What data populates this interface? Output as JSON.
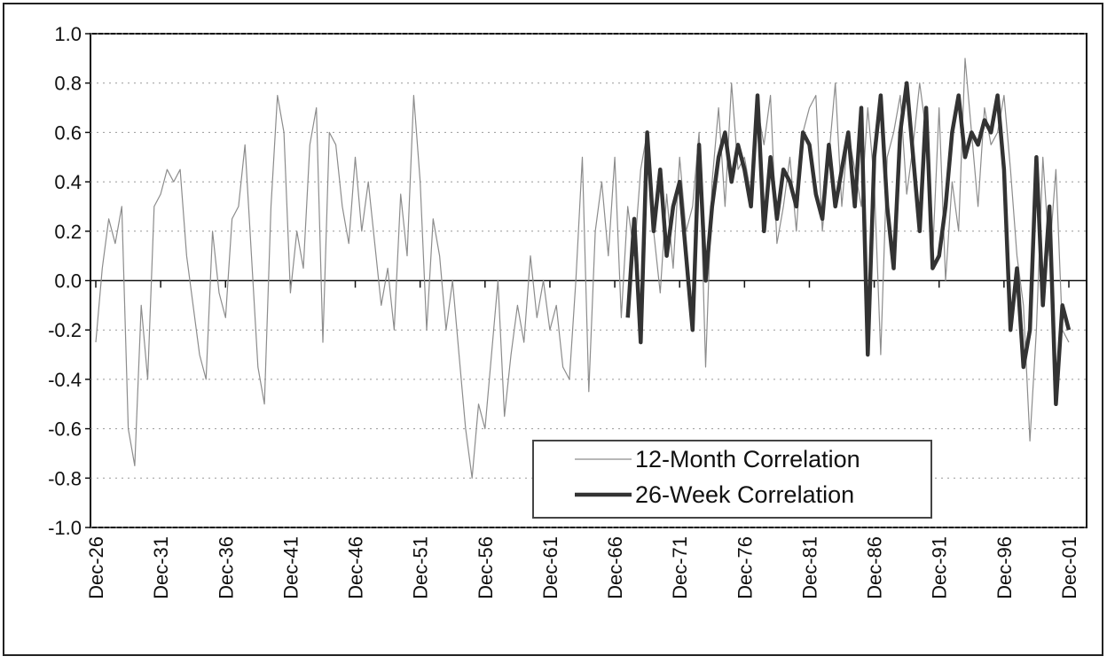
{
  "chart_data": {
    "type": "line",
    "categories": [
      "Dec-26",
      null,
      null,
      null,
      null,
      null,
      null,
      null,
      null,
      null,
      "Dec-31",
      null,
      null,
      null,
      null,
      null,
      null,
      null,
      null,
      null,
      "Dec-36",
      null,
      null,
      null,
      null,
      null,
      null,
      null,
      null,
      null,
      "Dec-41",
      null,
      null,
      null,
      null,
      null,
      null,
      null,
      null,
      null,
      "Dec-46",
      null,
      null,
      null,
      null,
      null,
      null,
      null,
      null,
      null,
      "Dec-51",
      null,
      null,
      null,
      null,
      null,
      null,
      null,
      null,
      null,
      "Dec-56",
      null,
      null,
      null,
      null,
      null,
      null,
      null,
      null,
      null,
      "Dec-61",
      null,
      null,
      null,
      null,
      null,
      null,
      null,
      null,
      null,
      "Dec-66",
      null,
      null,
      null,
      null,
      null,
      null,
      null,
      null,
      null,
      "Dec-71",
      null,
      null,
      null,
      null,
      null,
      null,
      null,
      null,
      null,
      "Dec-76",
      null,
      null,
      null,
      null,
      null,
      null,
      null,
      null,
      null,
      "Dec-81",
      null,
      null,
      null,
      null,
      null,
      null,
      null,
      null,
      null,
      "Dec-86",
      null,
      null,
      null,
      null,
      null,
      null,
      null,
      null,
      null,
      "Dec-91",
      null,
      null,
      null,
      null,
      null,
      null,
      null,
      null,
      null,
      "Dec-96",
      null,
      null,
      null,
      null,
      null,
      null,
      null,
      null,
      null,
      "Dec-01"
    ],
    "series": [
      {
        "name": "12-Month Correlation",
        "color": "#8c8c8c",
        "width": 1.2,
        "values": [
          -0.25,
          0.05,
          0.25,
          0.15,
          0.3,
          -0.6,
          -0.75,
          -0.1,
          -0.4,
          0.3,
          0.35,
          0.45,
          0.4,
          0.45,
          0.1,
          -0.1,
          -0.3,
          -0.4,
          0.2,
          -0.05,
          -0.15,
          0.25,
          0.3,
          0.55,
          0.1,
          -0.35,
          -0.5,
          0.3,
          0.75,
          0.6,
          -0.05,
          0.2,
          0.05,
          0.55,
          0.7,
          -0.25,
          0.6,
          0.55,
          0.3,
          0.15,
          0.5,
          0.2,
          0.4,
          0.15,
          -0.1,
          0.05,
          -0.2,
          0.35,
          0.1,
          0.75,
          0.4,
          -0.2,
          0.25,
          0.1,
          -0.2,
          0.0,
          -0.3,
          -0.6,
          -0.8,
          -0.5,
          -0.6,
          -0.3,
          0.0,
          -0.55,
          -0.3,
          -0.1,
          -0.25,
          0.1,
          -0.15,
          0.0,
          -0.2,
          -0.1,
          -0.35,
          -0.4,
          0.0,
          0.5,
          -0.45,
          0.2,
          0.4,
          0.1,
          0.5,
          -0.15,
          0.3,
          0.1,
          0.45,
          0.6,
          0.2,
          -0.05,
          0.35,
          0.05,
          0.5,
          0.2,
          0.3,
          0.6,
          -0.35,
          0.4,
          0.7,
          0.3,
          0.8,
          0.45,
          0.5,
          0.35,
          0.7,
          0.55,
          0.75,
          0.15,
          0.3,
          0.5,
          0.2,
          0.6,
          0.7,
          0.75,
          0.2,
          0.5,
          0.8,
          0.3,
          0.6,
          0.45,
          0.3,
          0.7,
          0.4,
          -0.3,
          0.5,
          0.6,
          0.75,
          0.35,
          0.55,
          0.8,
          0.6,
          0.1,
          0.7,
          0.0,
          0.4,
          0.2,
          0.9,
          0.6,
          0.3,
          0.7,
          0.55,
          0.6,
          0.75,
          0.45,
          0.1,
          -0.1,
          -0.65,
          -0.2,
          0.5,
          0.1,
          0.45,
          -0.2,
          -0.25
        ]
      },
      {
        "name": "26-Week Correlation",
        "color": "#333333",
        "width": 4.5,
        "values": [
          null,
          null,
          null,
          null,
          null,
          null,
          null,
          null,
          null,
          null,
          null,
          null,
          null,
          null,
          null,
          null,
          null,
          null,
          null,
          null,
          null,
          null,
          null,
          null,
          null,
          null,
          null,
          null,
          null,
          null,
          null,
          null,
          null,
          null,
          null,
          null,
          null,
          null,
          null,
          null,
          null,
          null,
          null,
          null,
          null,
          null,
          null,
          null,
          null,
          null,
          null,
          null,
          null,
          null,
          null,
          null,
          null,
          null,
          null,
          null,
          null,
          null,
          null,
          null,
          null,
          null,
          null,
          null,
          null,
          null,
          null,
          null,
          null,
          null,
          null,
          null,
          null,
          null,
          null,
          null,
          null,
          null,
          -0.15,
          0.25,
          -0.25,
          0.6,
          0.2,
          0.45,
          0.1,
          0.3,
          0.4,
          0.1,
          -0.2,
          0.55,
          0.0,
          0.3,
          0.5,
          0.6,
          0.4,
          0.55,
          0.45,
          0.3,
          0.75,
          0.2,
          0.5,
          0.25,
          0.45,
          0.4,
          0.3,
          0.6,
          0.55,
          0.35,
          0.25,
          0.55,
          0.3,
          0.45,
          0.6,
          0.3,
          0.7,
          -0.3,
          0.5,
          0.75,
          0.3,
          0.05,
          0.6,
          0.8,
          0.5,
          0.2,
          0.7,
          0.05,
          0.1,
          0.3,
          0.6,
          0.75,
          0.5,
          0.6,
          0.55,
          0.65,
          0.6,
          0.75,
          0.45,
          -0.2,
          0.05,
          -0.35,
          -0.2,
          0.5,
          -0.1,
          0.3,
          -0.5,
          -0.1,
          -0.2
        ]
      }
    ],
    "ylim": [
      -1.0,
      1.0
    ],
    "yticks": [
      {
        "value": -1.0,
        "label": "-1.0"
      },
      {
        "value": -0.8,
        "label": "-0.8"
      },
      {
        "value": -0.6,
        "label": "-0.6"
      },
      {
        "value": -0.4,
        "label": "-0.4"
      },
      {
        "value": -0.2,
        "label": "-0.2"
      },
      {
        "value": 0.0,
        "label": "0.0"
      },
      {
        "value": 0.2,
        "label": "0.2"
      },
      {
        "value": 0.4,
        "label": "0.4"
      },
      {
        "value": 0.6,
        "label": "0.6"
      },
      {
        "value": 0.8,
        "label": "0.8"
      },
      {
        "value": 1.0,
        "label": "1.0"
      }
    ],
    "grid": true
  }
}
